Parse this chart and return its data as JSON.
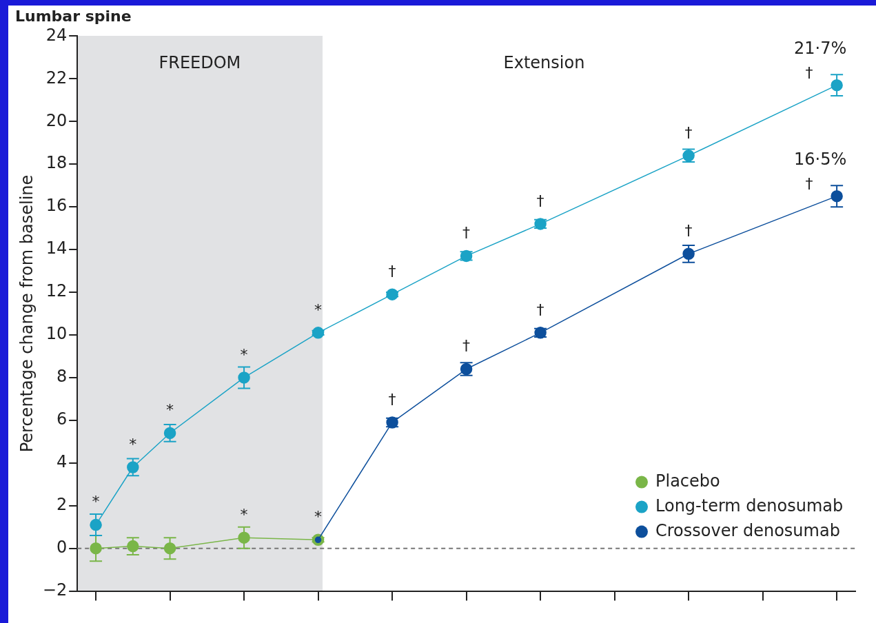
{
  "chart_data": {
    "type": "line",
    "title": "Lumbar spine",
    "ylabel": "Percentage change from baseline",
    "categories": [
      null,
      null,
      null,
      null,
      null,
      null,
      null,
      null,
      null,
      null,
      null,
      null,
      null,
      null,
      null,
      null,
      null,
      null,
      null,
      null,
      null
    ],
    "ylim": [
      -2,
      24
    ],
    "yticks": [
      -2,
      0,
      2,
      4,
      6,
      8,
      10,
      12,
      14,
      16,
      18,
      20,
      22,
      24
    ],
    "grid": false,
    "legend": "bottom right",
    "marker": "circle",
    "line_style": "solid",
    "series": [
      {
        "name": "Placebo",
        "color": "#7ab648",
        "values": [
          0,
          0.1,
          0,
          null,
          0.5,
          null,
          0.4,
          null,
          null,
          null,
          null,
          null,
          null,
          null,
          null,
          null,
          null,
          null,
          null,
          null,
          null
        ],
        "errors": [
          0.6,
          0.4,
          0.5,
          null,
          0.5,
          null,
          0.1,
          null,
          null,
          null,
          null,
          null,
          null,
          null,
          null,
          null,
          null,
          null,
          null,
          null,
          null
        ],
        "value_labels": [
          null,
          null,
          null,
          null,
          "*",
          null,
          "*",
          null,
          null,
          null,
          null,
          null,
          null,
          null,
          null,
          null,
          null,
          null,
          null,
          null,
          null
        ]
      },
      {
        "name": "Long-term denosumab",
        "color": "#1ba3c6",
        "values": [
          1.1,
          3.8,
          5.4,
          null,
          8.0,
          null,
          10.1,
          null,
          11.9,
          null,
          13.7,
          null,
          15.2,
          null,
          null,
          null,
          18.4,
          null,
          null,
          null,
          21.7
        ],
        "errors": [
          0.5,
          0.4,
          0.4,
          null,
          0.5,
          null,
          0.1,
          null,
          0.1,
          null,
          0.2,
          null,
          0.2,
          null,
          null,
          null,
          0.3,
          null,
          null,
          null,
          0.5
        ],
        "value_labels": [
          "*",
          "*",
          "*",
          null,
          "*",
          null,
          "*",
          null,
          "†",
          null,
          "†",
          null,
          "†",
          null,
          null,
          null,
          "†",
          null,
          null,
          null,
          "†"
        ]
      },
      {
        "name": "Crossover denosumab",
        "color": "#0d4f9c",
        "values": [
          null,
          null,
          null,
          null,
          null,
          null,
          0.4,
          null,
          5.9,
          null,
          8.4,
          null,
          10.1,
          null,
          null,
          null,
          13.8,
          null,
          null,
          null,
          16.5
        ],
        "errors": [
          null,
          null,
          null,
          null,
          null,
          null,
          null,
          null,
          0.2,
          null,
          0.3,
          null,
          0.2,
          null,
          null,
          null,
          0.4,
          null,
          null,
          null,
          0.5
        ],
        "value_labels": [
          null,
          null,
          null,
          null,
          null,
          null,
          null,
          null,
          "†",
          null,
          "†",
          null,
          "†",
          null,
          null,
          null,
          "†",
          null,
          null,
          null,
          "†"
        ]
      }
    ],
    "ref_lines": [
      {
        "axis": "y",
        "value": 0,
        "color": "#777777",
        "line_style": "dashed"
      }
    ],
    "annotations": [
      "FREEDOM",
      "Extension",
      "21·7%",
      "16·5%"
    ]
  }
}
